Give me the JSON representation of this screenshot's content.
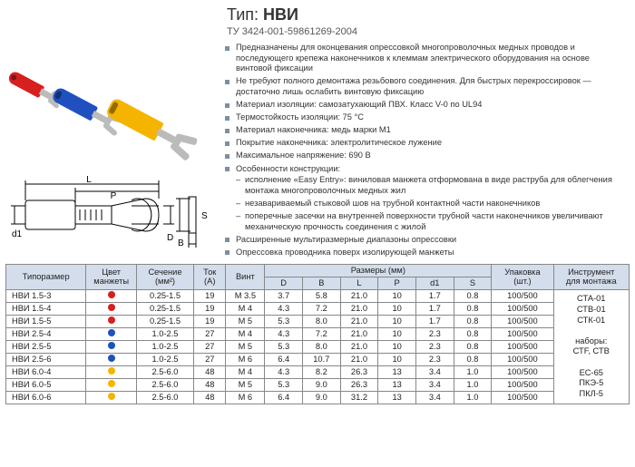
{
  "header": {
    "type_label": "Тип:",
    "type_value": "НВИ",
    "tu": "ТУ 3424-001-59861269-2004"
  },
  "colors": {
    "red": "#d62020",
    "blue": "#2050c0",
    "yellow": "#f5b400",
    "metal": "#bbbbbb"
  },
  "bullets": [
    "Предназначены для оконцевания опрессовкой многопроволочных медных проводов и последующего крепежа наконечников к клеммам электрического оборудования на основе винтовой фиксации",
    "Не требуют полного демонтажа резьбового соединения. Для быстрых перекроссировок — достаточно лишь ослабить винтовую фиксацию",
    "Материал изоляции: самозатухающий ПВХ. Класс V-0 по UL94",
    "Термостойкость изоляции: 75 °С",
    "Материал наконечника: медь марки М1",
    "Покрытие наконечника: электролитическое лужение",
    "Максимальное напряжение: 690 В"
  ],
  "bullet_features_title": "Особенности конструкции:",
  "bullet_features": [
    "исполнение «Easy Entry»: виниловая манжета отформована в виде раструба для облегчения монтажа многопроволочных медных жил",
    "незавариваемый стыковой шов на трубной контактной части наконечников",
    "поперечные засечки на внутренней поверхности трубной части наконечников увеличивают механическую прочность соединения с жилой"
  ],
  "bullets_after": [
    "Расширенные мультиразмерные диапазоны опрессовки",
    "Опрессовка проводника поверх изолирующей манжеты"
  ],
  "table": {
    "headers": {
      "type": "Типоразмер",
      "color": "Цвет\nманжеты",
      "section": "Сечение\n(мм²)",
      "amp": "Ток\n(А)",
      "screw": "Винт",
      "dims": "Размеры (мм)",
      "D": "D",
      "B": "B",
      "L": "L",
      "P": "P",
      "d1": "d1",
      "S": "S",
      "pack": "Упаковка\n(шт.)",
      "tool": "Инструмент\nдля монтажа"
    },
    "rows": [
      {
        "type": "НВИ 1.5-3",
        "color": "red",
        "sect": "0.25-1.5",
        "amp": "19",
        "screw": "М 3.5",
        "D": "3.7",
        "B": "5.8",
        "L": "21.0",
        "P": "10",
        "d1": "1.7",
        "S": "0.8",
        "pack": "100/500"
      },
      {
        "type": "НВИ 1.5-4",
        "color": "red",
        "sect": "0.25-1.5",
        "amp": "19",
        "screw": "М 4",
        "D": "4.3",
        "B": "7.2",
        "L": "21.0",
        "P": "10",
        "d1": "1.7",
        "S": "0.8",
        "pack": "100/500"
      },
      {
        "type": "НВИ 1.5-5",
        "color": "red",
        "sect": "0.25-1.5",
        "amp": "19",
        "screw": "М 5",
        "D": "5.3",
        "B": "8.0",
        "L": "21.0",
        "P": "10",
        "d1": "1.7",
        "S": "0.8",
        "pack": "100/500"
      },
      {
        "type": "НВИ 2.5-4",
        "color": "blue",
        "sect": "1.0-2.5",
        "amp": "27",
        "screw": "М 4",
        "D": "4.3",
        "B": "7.2",
        "L": "21.0",
        "P": "10",
        "d1": "2.3",
        "S": "0.8",
        "pack": "100/500"
      },
      {
        "type": "НВИ 2.5-5",
        "color": "blue",
        "sect": "1.0-2.5",
        "amp": "27",
        "screw": "М 5",
        "D": "5.3",
        "B": "8.0",
        "L": "21.0",
        "P": "10",
        "d1": "2.3",
        "S": "0.8",
        "pack": "100/500"
      },
      {
        "type": "НВИ 2.5-6",
        "color": "blue",
        "sect": "1.0-2.5",
        "amp": "27",
        "screw": "М 6",
        "D": "6.4",
        "B": "10.7",
        "L": "21.0",
        "P": "10",
        "d1": "2.3",
        "S": "0.8",
        "pack": "100/500"
      },
      {
        "type": "НВИ 6.0-4",
        "color": "yellow",
        "sect": "2.5-6.0",
        "amp": "48",
        "screw": "М 4",
        "D": "4.3",
        "B": "8.2",
        "L": "26.3",
        "P": "13",
        "d1": "3.4",
        "S": "1.0",
        "pack": "100/500"
      },
      {
        "type": "НВИ 6.0-5",
        "color": "yellow",
        "sect": "2.5-6.0",
        "amp": "48",
        "screw": "М 5",
        "D": "5.3",
        "B": "9.0",
        "L": "26.3",
        "P": "13",
        "d1": "3.4",
        "S": "1.0",
        "pack": "100/500"
      },
      {
        "type": "НВИ 6.0-6",
        "color": "yellow",
        "sect": "2.5-6.0",
        "amp": "48",
        "screw": "М 6",
        "D": "6.4",
        "B": "9.0",
        "L": "31.2",
        "P": "13",
        "d1": "3.4",
        "S": "1.0",
        "pack": "100/500"
      }
    ],
    "tools_lines": [
      "СТА-01",
      "СТВ-01",
      "СТК-01",
      "",
      "наборы:",
      "СТF, СТВ",
      "",
      "ЕС-65",
      "ПКЭ-5",
      "ПКЛ-5"
    ]
  },
  "schematic_labels": {
    "L": "L",
    "P": "P",
    "d1": "d1",
    "D": "D",
    "B": "B",
    "S": "S"
  }
}
